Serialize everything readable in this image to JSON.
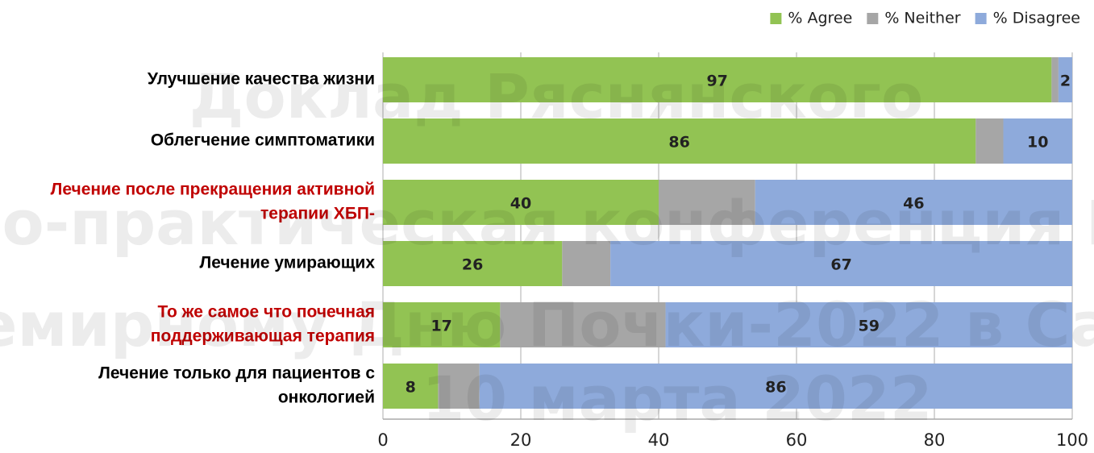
{
  "chart_data": {
    "type": "stacked-barh",
    "categories": [
      [
        "Улучшение качества жизни"
      ],
      [
        "Облегчение симптоматики"
      ],
      [
        "Лечение после прекращения  активной",
        "терапии ХБП-"
      ],
      [
        "Лечение умирающих"
      ],
      [
        "То же самое что почечная",
        "поддерживающая терапия"
      ],
      [
        "Лечение только для пациентов с",
        "онкологией"
      ]
    ],
    "category_colors": [
      "#000000",
      "#000000",
      "#c00000",
      "#000000",
      "#c00000",
      "#000000"
    ],
    "series": [
      {
        "name": "% Agree",
        "color": "#92c353",
        "values": [
          97,
          86,
          40,
          26,
          17,
          8
        ],
        "show_labels": true
      },
      {
        "name": "% Neither",
        "color": "#a6a6a6",
        "values": [
          1,
          4,
          14,
          7,
          24,
          6
        ],
        "show_labels": false
      },
      {
        "name": "% Disagree",
        "color": "#8eaadb",
        "values": [
          2,
          10,
          46,
          67,
          59,
          86
        ],
        "show_labels": true
      }
    ],
    "xlim": [
      0,
      100
    ],
    "xticks": [
      0,
      20,
      40,
      60,
      80,
      100
    ],
    "grid": true,
    "legend": "top-right",
    "watermark": [
      "Доклад Ряснянского",
      "но-практическая конференция Р",
      "емирному Дню Почки-2022 в Са",
      "10 марта 2022"
    ]
  }
}
